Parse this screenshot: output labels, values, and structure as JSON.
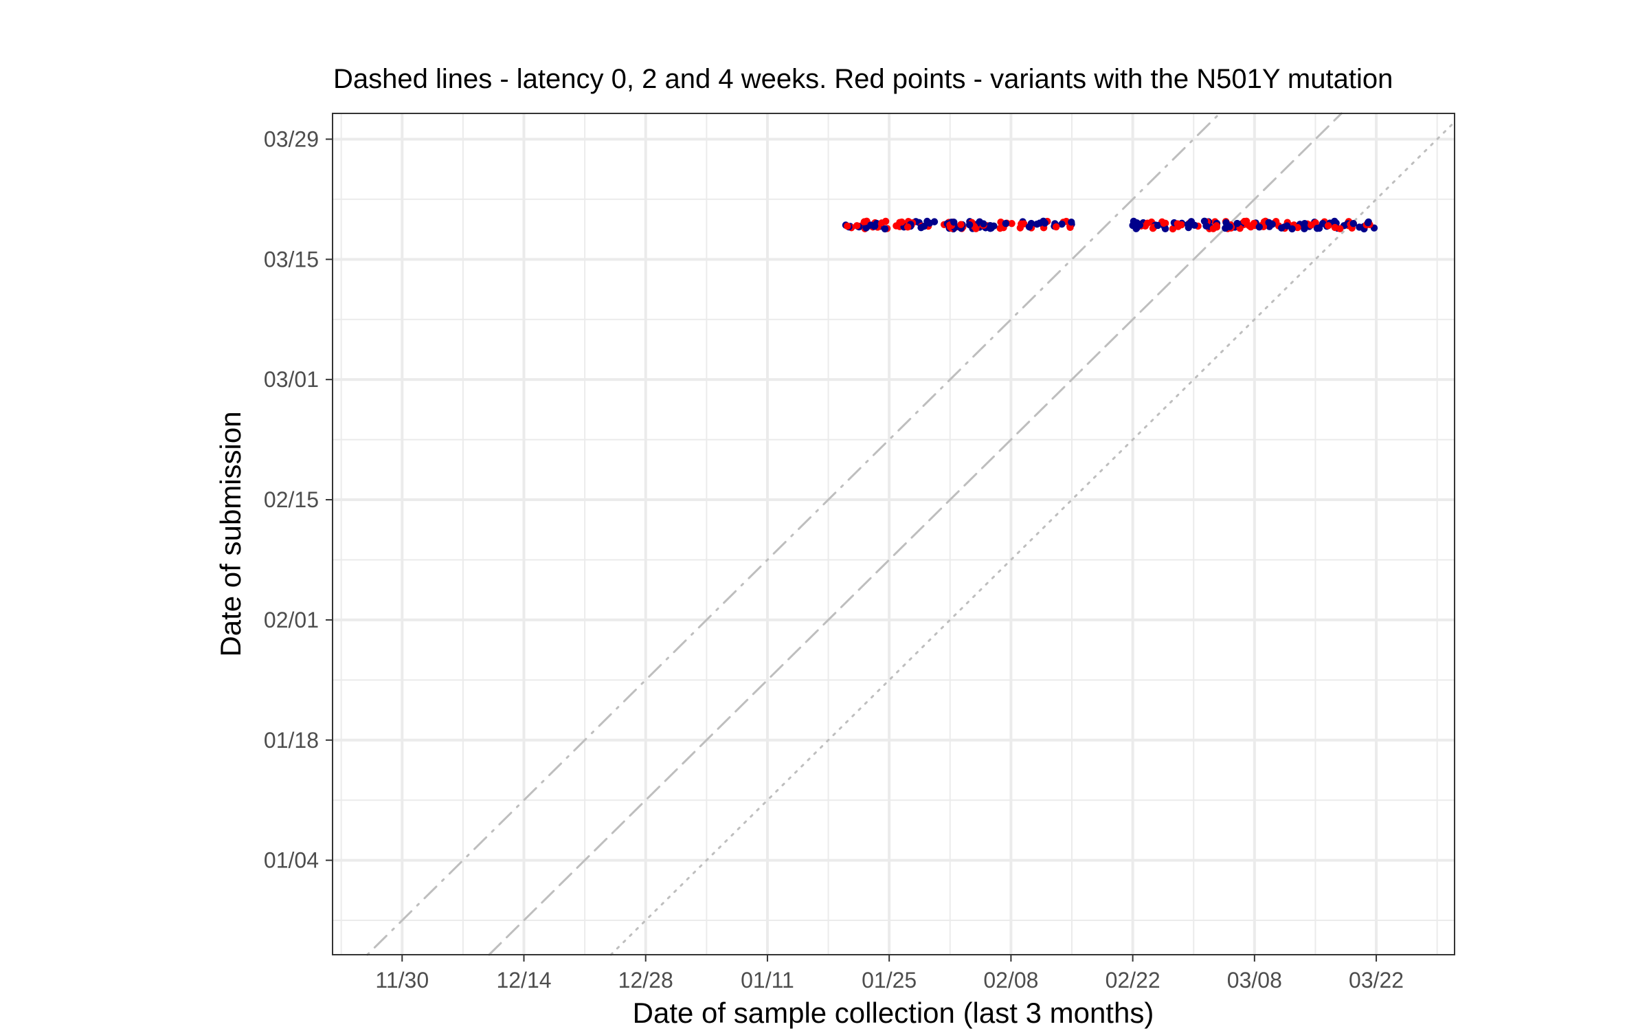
{
  "chart_data": {
    "type": "scatter",
    "title": "Dashed lines - latency 0, 2 and 4 weeks. Red points - variants with the N501Y mutation",
    "xlabel": "Date of sample collection (last 3 months)",
    "ylabel": "Date of submission",
    "x_ticks": [
      "11/30",
      "12/14",
      "12/28",
      "01/11",
      "01/25",
      "02/08",
      "02/22",
      "03/08",
      "03/22"
    ],
    "y_ticks": [
      "01/04",
      "01/18",
      "02/01",
      "02/15",
      "03/01",
      "03/15",
      "03/29"
    ],
    "xlim": [
      "11/22",
      "03/31"
    ],
    "ylim": [
      "12/24",
      "04/01"
    ],
    "grid": true,
    "colors": {
      "n501y": "#ff0000",
      "other": "#00008b",
      "reference_lines": "#bebebe",
      "grid": "#ebebeb"
    },
    "reference_lines": [
      {
        "latency_weeks": 0,
        "style": "dotted"
      },
      {
        "latency_weeks": 2,
        "style": "dashed"
      },
      {
        "latency_weeks": 4,
        "style": "dotdash"
      }
    ],
    "series": [
      {
        "name": "N501Y",
        "color": "#ff0000",
        "submission_date": "03/19",
        "collection_ranges": [
          [
            "01/20",
            "02/16"
          ],
          [
            "02/22",
            "03/22"
          ]
        ]
      },
      {
        "name": "",
        "color": "#00008b",
        "submission_date": "03/19",
        "collection_ranges": [
          [
            "01/20",
            "02/16"
          ],
          [
            "02/22",
            "03/22"
          ]
        ]
      }
    ]
  }
}
